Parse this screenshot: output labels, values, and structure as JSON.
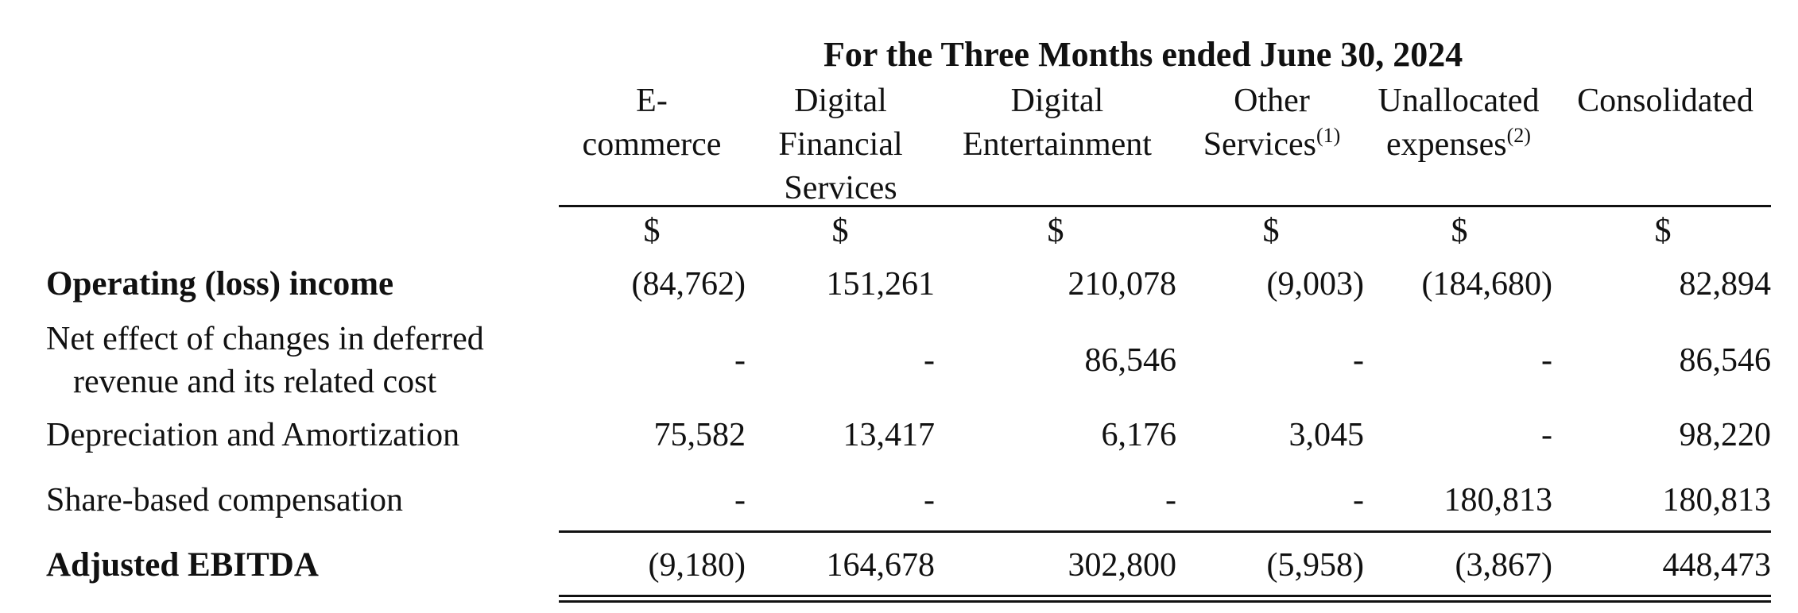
{
  "header": {
    "period": "For the Three Months ended June 30, 2024",
    "columns": [
      {
        "line1": "E-",
        "line2": "commerce",
        "line3": "",
        "footnote": ""
      },
      {
        "line1": "Digital",
        "line2": "Financial",
        "line3": "Services",
        "footnote": ""
      },
      {
        "line1": "Digital",
        "line2": "Entertainment",
        "line3": "",
        "footnote": ""
      },
      {
        "line1": "Other",
        "line2": "Services",
        "line3": "",
        "footnote": "(1)"
      },
      {
        "line1": "Unallocated",
        "line2": "expenses",
        "line3": "",
        "footnote": "(2)"
      },
      {
        "line1": "Consolidated",
        "line2": "",
        "line3": "",
        "footnote": ""
      }
    ],
    "currency": [
      "$",
      "$",
      "$",
      "$",
      "$",
      "$"
    ]
  },
  "rows": [
    {
      "label": "Operating (loss) income",
      "label2": "",
      "values": [
        "(84,762)",
        "151,261",
        "210,078",
        "(9,003)",
        "(184,680)",
        "82,894"
      ]
    },
    {
      "label": "Net effect of changes in deferred",
      "label2": "revenue and its related cost",
      "values": [
        "-",
        "-",
        "86,546",
        "-",
        "-",
        "86,546"
      ]
    },
    {
      "label": "Depreciation and Amortization",
      "label2": "",
      "values": [
        "75,582",
        "13,417",
        "6,176",
        "3,045",
        "-",
        "98,220"
      ]
    },
    {
      "label": "Share-based compensation",
      "label2": "",
      "values": [
        "-",
        "-",
        "-",
        "-",
        "180,813",
        "180,813"
      ]
    },
    {
      "label": "Adjusted EBITDA",
      "label2": "",
      "values": [
        "(9,180)",
        "164,678",
        "302,800",
        "(5,958)",
        "(3,867)",
        "448,473"
      ]
    }
  ]
}
